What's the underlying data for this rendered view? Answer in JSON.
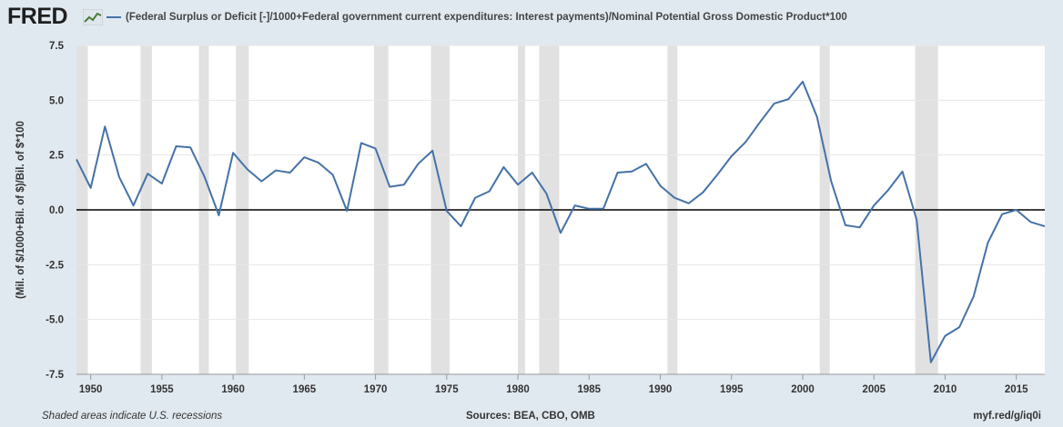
{
  "logo_text": "FRED",
  "colors": {
    "series": "#4572a7",
    "recession": "#e1e1e1",
    "plot_bg": "#ffffff",
    "page_bg": "#e1e9f0",
    "zero_line": "#000000"
  },
  "icons": [
    "fred-chart-icon"
  ],
  "footer": {
    "left": "Shaded areas indicate U.S. recessions",
    "center": "Sources: BEA, CBO, OMB",
    "right": "myf.red/g/iq0i"
  },
  "chart_data": {
    "type": "line",
    "title": "",
    "xlabel": "",
    "ylabel": "(Mil. of $/1000+Bil. of $)/Bil. of $*100",
    "xlim": [
      1949,
      2017
    ],
    "ylim": [
      -7.5,
      7.5
    ],
    "grid": "horizontal",
    "zero_line": true,
    "x_ticks": [
      1950,
      1955,
      1960,
      1965,
      1970,
      1975,
      1980,
      1985,
      1990,
      1995,
      2000,
      2005,
      2010,
      2015
    ],
    "y_ticks": [
      {
        "value": 7.5,
        "label": "7.5"
      },
      {
        "value": 5.0,
        "label": "5.0"
      },
      {
        "value": 2.5,
        "label": "2.5"
      },
      {
        "value": 0.0,
        "label": "0.0"
      },
      {
        "value": -2.5,
        "label": "-2.5"
      },
      {
        "value": -5.0,
        "label": "-5.0"
      },
      {
        "value": -7.5,
        "label": "-7.5"
      }
    ],
    "recessions": [
      [
        1949.0,
        1949.8
      ],
      [
        1953.5,
        1954.3
      ],
      [
        1957.6,
        1958.3
      ],
      [
        1960.2,
        1961.1
      ],
      [
        1969.9,
        1970.9
      ],
      [
        1973.9,
        1975.2
      ],
      [
        1980.0,
        1980.5
      ],
      [
        1981.5,
        1982.9
      ],
      [
        1990.5,
        1991.2
      ],
      [
        2001.2,
        2001.9
      ],
      [
        2007.9,
        2009.5
      ]
    ],
    "series": [
      {
        "name": "(Federal Surplus or Deficit [-]/1000+Federal government current expenditures: Interest payments)/Nominal Potential Gross Domestic Product*100",
        "x": [
          1949,
          1950,
          1951,
          1952,
          1953,
          1954,
          1955,
          1956,
          1957,
          1958,
          1959,
          1960,
          1961,
          1962,
          1963,
          1964,
          1965,
          1966,
          1967,
          1968,
          1969,
          1970,
          1971,
          1972,
          1973,
          1974,
          1975,
          1976,
          1977,
          1978,
          1979,
          1980,
          1981,
          1982,
          1983,
          1984,
          1985,
          1986,
          1987,
          1988,
          1989,
          1990,
          1991,
          1992,
          1993,
          1994,
          1995,
          1996,
          1997,
          1998,
          1999,
          2000,
          2001,
          2002,
          2003,
          2004,
          2005,
          2006,
          2007,
          2008,
          2009,
          2010,
          2011,
          2012,
          2013,
          2014,
          2015,
          2016,
          2017
        ],
        "values": [
          2.3,
          1.0,
          3.8,
          1.5,
          0.2,
          1.65,
          1.2,
          2.9,
          2.85,
          1.5,
          -0.25,
          2.6,
          1.85,
          1.3,
          1.8,
          1.7,
          2.4,
          2.15,
          1.6,
          -0.05,
          3.05,
          2.8,
          1.05,
          1.15,
          2.1,
          2.7,
          -0.05,
          -0.75,
          0.55,
          0.85,
          1.95,
          1.15,
          1.7,
          0.75,
          -1.05,
          0.2,
          0.05,
          0.05,
          1.7,
          1.75,
          2.1,
          1.1,
          0.55,
          0.3,
          0.8,
          1.6,
          2.45,
          3.1,
          4.0,
          4.85,
          5.05,
          5.85,
          4.25,
          1.3,
          -0.7,
          -0.8,
          0.2,
          0.9,
          1.75,
          -0.45,
          -6.95,
          -5.75,
          -5.35,
          -3.95,
          -1.5,
          -0.2,
          0.0,
          -0.55,
          -0.75
        ]
      }
    ]
  }
}
